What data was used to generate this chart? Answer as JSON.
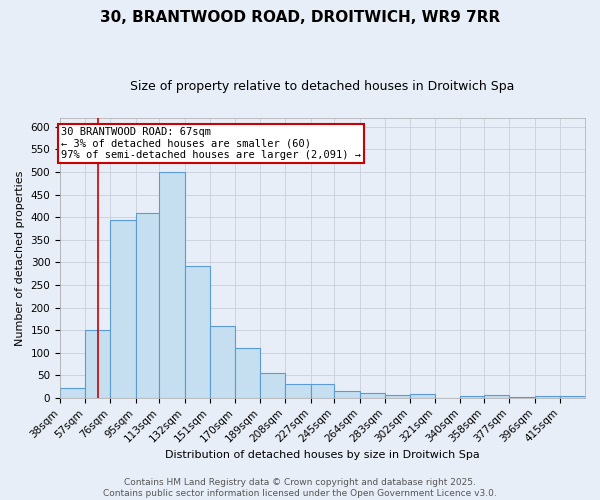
{
  "title_line1": "30, BRANTWOOD ROAD, DROITWICH, WR9 7RR",
  "title_line2": "Size of property relative to detached houses in Droitwich Spa",
  "xlabel": "Distribution of detached houses by size in Droitwich Spa",
  "ylabel": "Number of detached properties",
  "bar_labels": [
    "38sqm",
    "57sqm",
    "76sqm",
    "95sqm",
    "113sqm",
    "132sqm",
    "151sqm",
    "170sqm",
    "189sqm",
    "208sqm",
    "227sqm",
    "245sqm",
    "264sqm",
    "283sqm",
    "302sqm",
    "321sqm",
    "340sqm",
    "358sqm",
    "377sqm",
    "396sqm",
    "415sqm"
  ],
  "bar_values": [
    22,
    150,
    393,
    410,
    500,
    292,
    160,
    111,
    54,
    30,
    30,
    16,
    10,
    6,
    9,
    0,
    4,
    6,
    1,
    5,
    4
  ],
  "bin_edges": [
    38,
    57,
    76,
    95,
    113,
    132,
    151,
    170,
    189,
    208,
    227,
    245,
    264,
    283,
    302,
    321,
    340,
    358,
    377,
    396,
    415,
    434
  ],
  "bar_color": "#c5dff0",
  "bar_edge_color": "#5b9bd5",
  "bar_edge_width": 0.8,
  "red_line_x": 67,
  "red_line_color": "#cc0000",
  "annotation_text": "30 BRANTWOOD ROAD: 67sqm\n← 3% of detached houses are smaller (60)\n97% of semi-detached houses are larger (2,091) →",
  "annotation_box_color": "white",
  "annotation_box_edge_color": "#cc0000",
  "ylim": [
    0,
    620
  ],
  "yticks": [
    0,
    50,
    100,
    150,
    200,
    250,
    300,
    350,
    400,
    450,
    500,
    550,
    600
  ],
  "grid_color": "#c8d0dc",
  "background_color": "#e8eef8",
  "footer_text": "Contains HM Land Registry data © Crown copyright and database right 2025.\nContains public sector information licensed under the Open Government Licence v3.0.",
  "title_fontsize": 11,
  "subtitle_fontsize": 9,
  "label_fontsize": 8,
  "tick_fontsize": 7.5,
  "annotation_fontsize": 7.5,
  "footer_fontsize": 6.5
}
